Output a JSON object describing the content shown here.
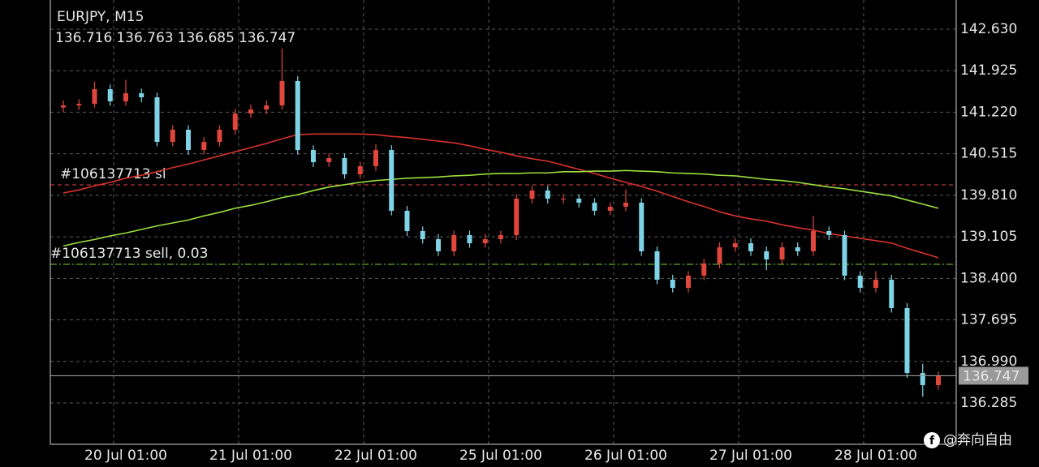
{
  "chart_data": {
    "type": "candlestick",
    "title": "EURJPY, M15",
    "ohlc_header": [
      136.716,
      136.763,
      136.685,
      136.747
    ],
    "categories": [
      null,
      null,
      null,
      null,
      "20 Jul 01:00",
      null,
      null,
      null,
      null,
      null,
      null,
      null,
      "21 Jul 01:00",
      null,
      null,
      null,
      null,
      null,
      null,
      null,
      "22 Jul 01:00",
      null,
      null,
      null,
      null,
      null,
      null,
      null,
      "25 Jul 01:00",
      null,
      null,
      null,
      null,
      null,
      null,
      null,
      "26 Jul 01:00",
      null,
      null,
      null,
      null,
      null,
      null,
      null,
      "27 Jul 01:00",
      null,
      null,
      null,
      null,
      null,
      null,
      null,
      "28 Jul 01:00",
      null,
      null,
      null,
      null
    ],
    "open": [
      141.3,
      141.336,
      141.363,
      141.611,
      141.405,
      141.542,
      141.473,
      140.717,
      140.923,
      140.579,
      140.717,
      140.923,
      141.198,
      141.267,
      141.336,
      141.749,
      140.579,
      140.372,
      140.441,
      140.166,
      140.304,
      140.579,
      139.547,
      139.203,
      139.065,
      138.859,
      139.134,
      138.996,
      139.065,
      139.134,
      139.753,
      139.891,
      139.753,
      139.753,
      139.684,
      139.547,
      139.616,
      139.684,
      138.859,
      138.377,
      138.239,
      138.446,
      138.652,
      138.927,
      138.996,
      138.859,
      138.721,
      138.927,
      138.859,
      139.203,
      139.134,
      138.446,
      138.239,
      138.377,
      137.895,
      136.794,
      136.588
    ],
    "high": [
      141.42,
      141.44,
      141.74,
      141.69,
      141.77,
      141.62,
      141.55,
      141.0,
      141.0,
      140.8,
      141.0,
      141.28,
      141.35,
      141.42,
      142.3,
      141.83,
      140.66,
      140.52,
      140.52,
      140.38,
      140.68,
      140.66,
      139.63,
      139.28,
      139.15,
      139.21,
      139.21,
      139.15,
      139.21,
      139.83,
      139.97,
      139.97,
      139.83,
      139.83,
      139.76,
      139.69,
      139.91,
      139.76,
      138.94,
      138.46,
      138.52,
      138.73,
      139.01,
      139.08,
      139.08,
      138.94,
      139.01,
      139.01,
      139.46,
      139.28,
      139.21,
      138.52,
      138.52,
      138.46,
      137.98,
      136.95,
      136.82
    ],
    "low": [
      141.22,
      141.26,
      141.3,
      141.33,
      141.33,
      141.39,
      140.64,
      140.64,
      140.5,
      140.5,
      140.64,
      140.84,
      141.12,
      141.19,
      141.26,
      140.5,
      140.29,
      140.29,
      140.09,
      140.09,
      140.22,
      139.47,
      139.12,
      138.99,
      138.78,
      138.78,
      138.92,
      138.92,
      138.99,
      139.05,
      139.67,
      139.67,
      139.67,
      139.6,
      139.47,
      139.47,
      139.54,
      138.78,
      138.3,
      138.16,
      138.16,
      138.37,
      138.57,
      138.85,
      138.78,
      138.54,
      138.64,
      138.78,
      138.78,
      139.05,
      138.37,
      138.16,
      138.16,
      137.82,
      136.71,
      136.39,
      136.51
    ],
    "close": [
      141.336,
      141.363,
      141.611,
      141.405,
      141.542,
      141.473,
      140.717,
      140.923,
      140.579,
      140.717,
      140.923,
      141.198,
      141.267,
      141.336,
      141.749,
      140.579,
      140.372,
      140.441,
      140.166,
      140.304,
      140.579,
      139.547,
      139.203,
      139.065,
      138.859,
      139.134,
      138.996,
      139.065,
      139.134,
      139.753,
      139.891,
      139.753,
      139.753,
      139.684,
      139.547,
      139.616,
      139.684,
      138.859,
      138.377,
      138.239,
      138.446,
      138.652,
      138.927,
      138.996,
      138.859,
      138.721,
      138.927,
      138.859,
      139.203,
      139.134,
      138.446,
      138.239,
      138.377,
      137.895,
      136.794,
      136.588,
      136.747
    ],
    "up_color": "#e0463c",
    "down_color": "#7fd3e6",
    "ma": [
      {
        "color": "#d8322c",
        "values": [
          139.85,
          139.9,
          139.97,
          140.03,
          140.1,
          140.15,
          140.21,
          140.28,
          140.34,
          140.41,
          140.48,
          140.55,
          140.62,
          140.69,
          140.77,
          140.84,
          140.85,
          140.85,
          140.85,
          140.85,
          140.84,
          140.81,
          140.79,
          140.76,
          140.73,
          140.7,
          140.65,
          140.59,
          140.54,
          140.48,
          140.43,
          140.39,
          140.32,
          140.25,
          140.18,
          140.1,
          140.03,
          139.96,
          139.88,
          139.79,
          139.7,
          139.62,
          139.53,
          139.46,
          139.41,
          139.37,
          139.31,
          139.26,
          139.22,
          139.16,
          139.12,
          139.08,
          139.04,
          139.0,
          138.91,
          138.83,
          138.75
        ]
      },
      {
        "color": "#9be03c",
        "values": [
          138.95,
          139.01,
          139.06,
          139.12,
          139.17,
          139.23,
          139.29,
          139.34,
          139.39,
          139.46,
          139.52,
          139.59,
          139.64,
          139.7,
          139.77,
          139.82,
          139.89,
          139.95,
          139.99,
          140.03,
          140.06,
          140.08,
          140.1,
          140.11,
          140.12,
          140.14,
          140.15,
          140.17,
          140.18,
          140.18,
          140.19,
          140.19,
          140.21,
          140.21,
          140.22,
          140.22,
          140.23,
          140.22,
          140.21,
          140.19,
          140.18,
          140.17,
          140.15,
          140.14,
          140.11,
          140.08,
          140.06,
          140.03,
          139.99,
          139.95,
          139.92,
          139.88,
          139.84,
          139.8,
          139.73,
          139.66,
          139.59
        ]
      }
    ],
    "levels": [
      {
        "label": "#106137713 sl",
        "value": 139.987,
        "color": "#e0463c",
        "style": "dash"
      },
      {
        "label": "#106137713 sell, 0.03",
        "value": 138.638,
        "color": "#7ed321",
        "style": "dashdot"
      }
    ],
    "bid": {
      "value": 136.747,
      "color": "#9a9a9a"
    },
    "ylim": [
      135.583,
      143.125
    ],
    "yticks": [
      {
        "value": 136.285,
        "label": "136.285"
      },
      {
        "value": 136.99,
        "label": "136.990"
      },
      {
        "value": 137.695,
        "label": "137.695"
      },
      {
        "value": 138.4,
        "label": "138.400"
      },
      {
        "value": 139.105,
        "label": "139.105"
      },
      {
        "value": 139.81,
        "label": "139.810"
      },
      {
        "value": 140.515,
        "label": "140.515"
      },
      {
        "value": 141.22,
        "label": "141.220"
      },
      {
        "value": 141.925,
        "label": "141.925"
      },
      {
        "value": 142.63,
        "label": "142.630"
      }
    ],
    "grid": true,
    "watermark": "@奔向自由"
  }
}
